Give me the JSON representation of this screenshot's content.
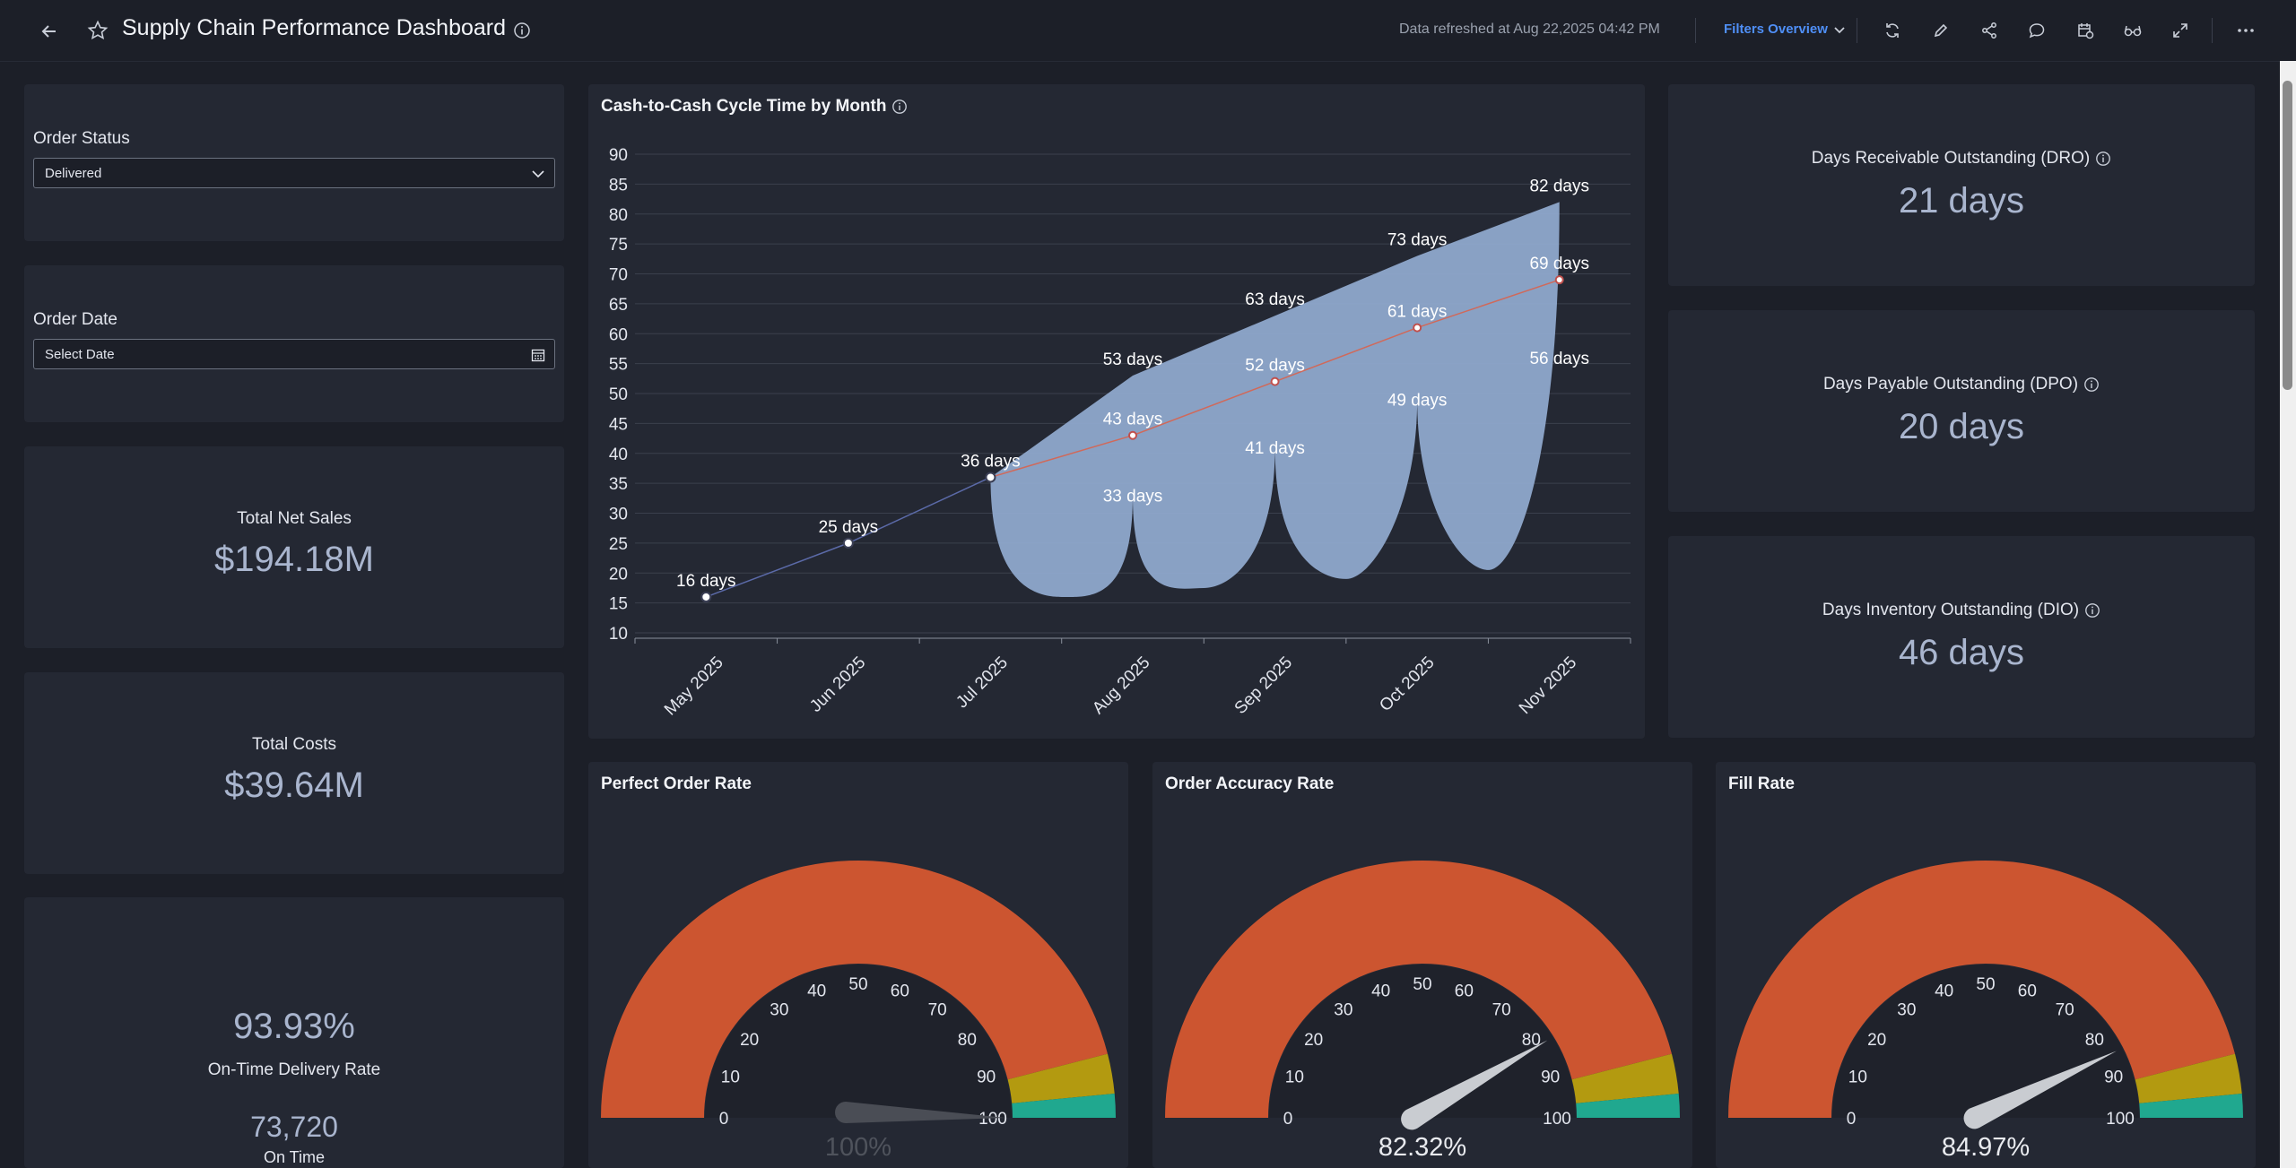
{
  "header": {
    "title": "Supply Chain Performance Dashboard",
    "refresh_text": "Data refreshed at Aug 22,2025 04:42 PM",
    "filters_label": "Filters Overview",
    "icons": [
      "back-arrow-icon",
      "star-icon",
      "info-icon",
      "refresh-icon",
      "edit-icon",
      "share-icon",
      "comment-icon",
      "schedule-icon",
      "glasses-icon",
      "expand-icon",
      "more-icon"
    ]
  },
  "filters": {
    "order_status": {
      "label": "Order Status",
      "value": "Delivered"
    },
    "order_date": {
      "label": "Order Date",
      "placeholder": "Select Date"
    }
  },
  "kpis": {
    "net_sales": {
      "label": "Total Net Sales",
      "value": "$194.18M"
    },
    "costs": {
      "label": "Total Costs",
      "value": "$39.64M"
    },
    "on_time": {
      "value": "93.93%",
      "label": "On-Time Delivery Rate",
      "count": "73,720",
      "sub": "On Time"
    },
    "dro": {
      "label": "Days Receivable Outstanding (DRO)",
      "value": "21 days"
    },
    "dpo": {
      "label": "Days Payable Outstanding (DPO)",
      "value": "20 days"
    },
    "dio": {
      "label": "Days Inventory Outstanding (DIO)",
      "value": "46 days"
    }
  },
  "chart_data": [
    {
      "type": "line",
      "title": "Cash-to-Cash Cycle Time by Month",
      "categories": [
        "May 2025",
        "Jun 2025",
        "Jul 2025",
        "Aug 2025",
        "Sep 2025",
        "Oct 2025",
        "Nov 2025"
      ],
      "ylim": [
        10,
        90
      ],
      "yticks": [
        10,
        15,
        20,
        25,
        30,
        35,
        40,
        45,
        50,
        55,
        60,
        65,
        70,
        75,
        80,
        85,
        90
      ],
      "series": [
        {
          "values": [
            16,
            25,
            36,
            43,
            52,
            61,
            69
          ],
          "labels": [
            "16 days",
            "25 days",
            "36 days",
            "43 days",
            "52 days",
            "61 days",
            "69 days"
          ]
        }
      ],
      "range": {
        "categories": [
          "Jul 2025",
          "Aug 2025",
          "Sep 2025",
          "Oct 2025",
          "Nov 2025"
        ],
        "upper": [
          36,
          53,
          63,
          73,
          82
        ],
        "lower": [
          36,
          33,
          41,
          49,
          56
        ],
        "upper_labels": [
          "53 days",
          "63 days",
          "73 days",
          "82 days"
        ],
        "lower_labels": [
          "33 days",
          "41 days",
          "49 days",
          "56 days"
        ]
      },
      "colors": {
        "band": "#8fa8cc",
        "line_before": "#5b6aa8",
        "line_after": "#d0695a"
      },
      "grid": true
    },
    {
      "type": "gauge",
      "title": "Perfect Order Rate",
      "value": 100,
      "value_label": "100%",
      "ticks": [
        0,
        10,
        20,
        30,
        40,
        50,
        60,
        70,
        80,
        90,
        100
      ]
    },
    {
      "type": "gauge",
      "title": "Order Accuracy Rate",
      "value": 82.32,
      "value_label": "82.32%",
      "ticks": [
        0,
        10,
        20,
        30,
        40,
        50,
        60,
        70,
        80,
        90,
        100
      ]
    },
    {
      "type": "gauge",
      "title": "Fill Rate",
      "value": 84.97,
      "value_label": "84.97%",
      "ticks": [
        0,
        10,
        20,
        30,
        40,
        50,
        60,
        70,
        80,
        90,
        100
      ]
    }
  ],
  "gauge_colors": {
    "red": "#cc5530",
    "yellow": "#b39a10",
    "green": "#20a88f"
  }
}
